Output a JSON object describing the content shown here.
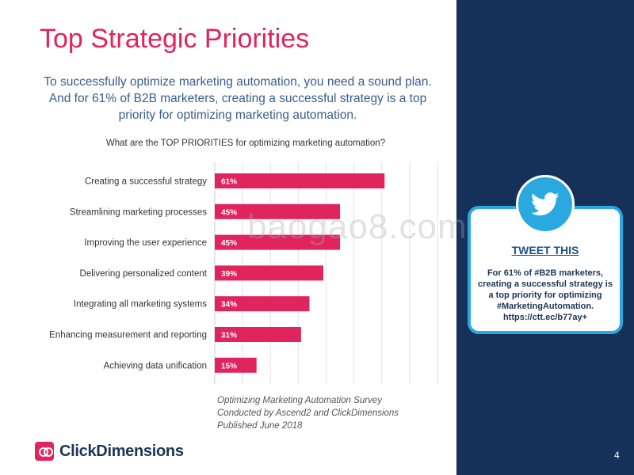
{
  "slide": {
    "title": "Top Strategic Priorities",
    "subtitle": "To successfully optimize marketing automation, you need a sound plan. And for 61% of B2B marketers, creating a successful strategy is a top priority for optimizing marketing automation.",
    "question": "What are the TOP PRIORITIES for optimizing marketing automation?",
    "source_lines": [
      "Optimizing Marketing Automation Survey",
      "Conducted by Ascend2 and ClickDimensions",
      "Published June 2018"
    ],
    "logo_text": "ClickDimensions",
    "page_number": "4",
    "watermark": "baogao8.com"
  },
  "tweet_card": {
    "heading": "TWEET THIS",
    "body": "For 61% of #B2B marketers, creating a successful strategy is a top priority for optimizing #MarketingAutomation. https://ctt.ec/b77ay+",
    "icon": "twitter-bird-icon"
  },
  "colors": {
    "accent": "#e0245e",
    "panel": "#15315a",
    "twitter": "#2aa9e0",
    "text_blue": "#3a5d8c"
  },
  "chart_data": {
    "type": "bar",
    "orientation": "horizontal",
    "categories": [
      "Creating a successful strategy",
      "Streamlining marketing processes",
      "Improving the user experience",
      "Delivering personalized content",
      "Integrating all marketing systems",
      "Enhancing measurement and reporting",
      "Achieving data unification"
    ],
    "values": [
      61,
      45,
      45,
      39,
      34,
      31,
      15
    ],
    "value_labels": [
      "61%",
      "45%",
      "45%",
      "39%",
      "34%",
      "31%",
      "15%"
    ],
    "unit": "%",
    "xlim": [
      0,
      80
    ],
    "grid": true,
    "bar_color": "#e0245e"
  }
}
